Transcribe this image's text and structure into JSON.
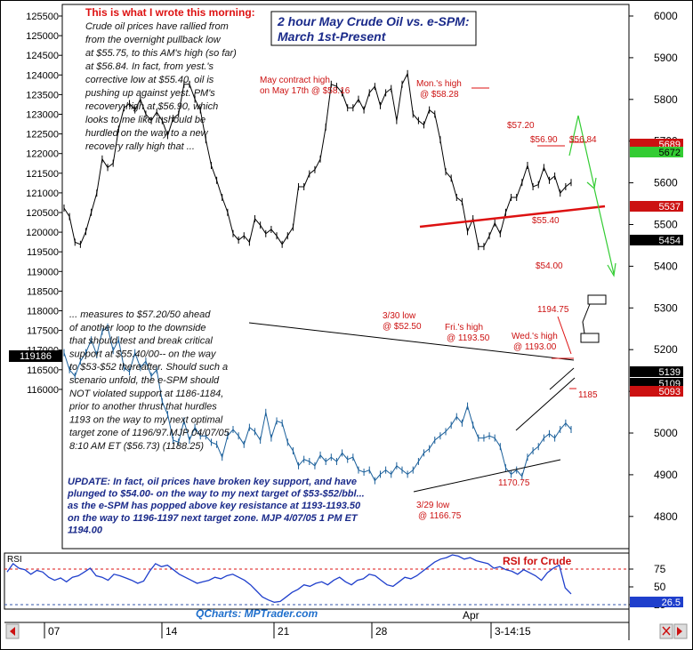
{
  "chart_data": [
    {
      "type": "line",
      "title": "2 hour May Crude Oil vs. e-SPM:",
      "subtitle": "March 1st-Present",
      "left_axis": {
        "ticks": [
          125500,
          125000,
          124500,
          124000,
          123500,
          123000,
          122500,
          122000,
          121500,
          121000,
          120500,
          120000,
          119500,
          119000,
          118500,
          118000,
          117500,
          117000,
          116500,
          116000
        ],
        "last_value_label": "119186"
      },
      "right_axis": {
        "ticks": [
          6000,
          5900,
          5800,
          5700,
          5600,
          5500,
          5400,
          5300,
          5200,
          5100,
          5000,
          4900,
          4800
        ],
        "badges": [
          {
            "text": "5689",
            "bg": "#cc1111",
            "fg": "#ffffff"
          },
          {
            "text": "5672",
            "bg": "#33cc33",
            "fg": "#000000"
          },
          {
            "text": "5537",
            "bg": "#cc1111",
            "fg": "#ffffff"
          },
          {
            "text": "5454",
            "bg": "#000000",
            "fg": "#ffffff"
          },
          {
            "text": "5139",
            "bg": "#000000",
            "fg": "#ffffff"
          },
          {
            "text": "5109",
            "bg": "#000000",
            "fg": "#ffffff"
          },
          {
            "text": "5093",
            "bg": "#cc1111",
            "fg": "#ffffff"
          }
        ]
      },
      "x_ticks": [
        "07",
        "14",
        "21",
        "28",
        "3-14:15"
      ],
      "x_month_label": "Apr",
      "series": [
        {
          "name": "Crude",
          "color": "#000000"
        },
        {
          "name": "e-SPM",
          "color": "#1a5f9a"
        }
      ],
      "crude_path": [
        [
          0,
          40
        ],
        [
          4,
          36
        ],
        [
          8,
          24
        ],
        [
          12,
          23
        ],
        [
          16,
          29
        ],
        [
          20,
          38
        ],
        [
          24,
          47
        ],
        [
          28,
          63
        ],
        [
          32,
          59
        ],
        [
          36,
          61
        ],
        [
          40,
          77
        ],
        [
          44,
          87
        ],
        [
          48,
          89
        ],
        [
          52,
          86
        ],
        [
          55,
          91
        ],
        [
          60,
          84
        ],
        [
          64,
          81
        ],
        [
          68,
          85
        ],
        [
          72,
          81
        ],
        [
          76,
          74
        ],
        [
          80,
          82
        ],
        [
          84,
          84
        ],
        [
          88,
          98
        ],
        [
          92,
          98
        ],
        [
          96,
          91
        ],
        [
          100,
          86
        ],
        [
          104,
          72
        ],
        [
          108,
          60
        ],
        [
          112,
          53
        ],
        [
          116,
          45
        ],
        [
          120,
          38
        ],
        [
          124,
          28
        ],
        [
          128,
          25
        ],
        [
          132,
          27
        ],
        [
          136,
          24
        ],
        [
          140,
          35
        ],
        [
          144,
          32
        ],
        [
          148,
          28
        ],
        [
          152,
          30
        ],
        [
          156,
          27
        ],
        [
          160,
          23
        ],
        [
          164,
          27
        ],
        [
          168,
          31
        ],
        [
          172,
          50
        ],
        [
          176,
          50
        ],
        [
          180,
          56
        ],
        [
          184,
          58
        ],
        [
          188,
          63
        ],
        [
          192,
          78
        ],
        [
          196,
          98
        ],
        [
          200,
          97
        ],
        [
          204,
          94
        ],
        [
          208,
          87
        ],
        [
          212,
          87
        ],
        [
          216,
          91
        ],
        [
          220,
          86
        ],
        [
          224,
          94
        ],
        [
          228,
          97
        ],
        [
          232,
          88
        ],
        [
          236,
          94
        ],
        [
          240,
          96
        ],
        [
          244,
          81
        ],
        [
          248,
          98
        ],
        [
          252,
          103
        ],
        [
          256,
          84
        ],
        [
          260,
          81
        ],
        [
          264,
          79
        ],
        [
          268,
          86
        ],
        [
          272,
          84
        ],
        [
          276,
          72
        ],
        [
          280,
          57
        ],
        [
          284,
          54
        ],
        [
          288,
          45
        ],
        [
          292,
          43
        ],
        [
          296,
          29
        ],
        [
          300,
          35
        ],
        [
          304,
          22
        ],
        [
          308,
          22
        ],
        [
          312,
          27
        ],
        [
          316,
          33
        ],
        [
          320,
          28
        ],
        [
          324,
          38
        ],
        [
          328,
          45
        ],
        [
          332,
          45
        ],
        [
          336,
          52
        ],
        [
          340,
          60
        ],
        [
          344,
          50
        ],
        [
          348,
          51
        ],
        [
          352,
          59
        ],
        [
          356,
          53
        ],
        [
          360,
          55
        ],
        [
          364,
          47
        ],
        [
          368,
          50
        ],
        [
          372,
          52
        ]
      ],
      "spm_path": [
        [
          0,
          66
        ],
        [
          4,
          58
        ],
        [
          8,
          55
        ],
        [
          12,
          62
        ],
        [
          16,
          66
        ],
        [
          20,
          72
        ],
        [
          24,
          65
        ],
        [
          28,
          76
        ],
        [
          32,
          78
        ],
        [
          36,
          67
        ],
        [
          40,
          72
        ],
        [
          44,
          59
        ],
        [
          48,
          57
        ],
        [
          52,
          66
        ],
        [
          56,
          59
        ],
        [
          60,
          62
        ],
        [
          64,
          55
        ],
        [
          68,
          58
        ],
        [
          72,
          43
        ],
        [
          76,
          37
        ],
        [
          80,
          25
        ],
        [
          84,
          24
        ],
        [
          88,
          34
        ],
        [
          92,
          25
        ],
        [
          96,
          31
        ],
        [
          100,
          27
        ],
        [
          104,
          27
        ],
        [
          108,
          24
        ],
        [
          112,
          23
        ],
        [
          116,
          17
        ],
        [
          120,
          27
        ],
        [
          124,
          30
        ],
        [
          128,
          27
        ],
        [
          132,
          23
        ],
        [
          136,
          31
        ],
        [
          140,
          29
        ],
        [
          144,
          25
        ],
        [
          148,
          38
        ],
        [
          152,
          26
        ],
        [
          156,
          34
        ],
        [
          160,
          33
        ],
        [
          164,
          24
        ],
        [
          168,
          20
        ],
        [
          172,
          13
        ],
        [
          176,
          16
        ],
        [
          180,
          15
        ],
        [
          184,
          13
        ],
        [
          188,
          18
        ],
        [
          192,
          15
        ],
        [
          196,
          17
        ],
        [
          200,
          15
        ],
        [
          204,
          19
        ],
        [
          208,
          16
        ],
        [
          212,
          17
        ],
        [
          216,
          11
        ],
        [
          220,
          10
        ],
        [
          224,
          11
        ],
        [
          228,
          6
        ],
        [
          232,
          9
        ],
        [
          236,
          11
        ],
        [
          240,
          9
        ],
        [
          244,
          13
        ],
        [
          248,
          11
        ],
        [
          252,
          9
        ],
        [
          256,
          11
        ],
        [
          260,
          15
        ],
        [
          264,
          19
        ],
        [
          268,
          21
        ],
        [
          272,
          25
        ],
        [
          276,
          27
        ],
        [
          280,
          29
        ],
        [
          284,
          32
        ],
        [
          288,
          36
        ],
        [
          292,
          33
        ],
        [
          296,
          41
        ],
        [
          300,
          32
        ],
        [
          304,
          26
        ],
        [
          308,
          26
        ],
        [
          312,
          27
        ],
        [
          316,
          26
        ],
        [
          320,
          22
        ],
        [
          324,
          12
        ],
        [
          328,
          9
        ],
        [
          332,
          11
        ],
        [
          336,
          8
        ],
        [
          340,
          17
        ],
        [
          344,
          20
        ],
        [
          348,
          22
        ],
        [
          352,
          26
        ],
        [
          356,
          28
        ],
        [
          360,
          26
        ],
        [
          364,
          30
        ],
        [
          368,
          33
        ],
        [
          372,
          30
        ]
      ],
      "annotations": {
        "note_heading": "This is what I wrote this morning:",
        "note_body": [
          "Crude oil prices have rallied from",
          "from the overnight pullback low",
          "at $55.75, to this AM's high (so far)",
          "at $56.84. In fact, from yest.'s",
          "corrective low at $55.40, oil is",
          "pushing up against yest. PM's",
          "recovery high at $56.90, which",
          "looks to me like it should be",
          "hurdled on the way to a new",
          "recovery rally high that ..."
        ],
        "note_body2": [
          "... measures to $57.20/50 ahead",
          "of another loop to the downside",
          "that should test and break critical",
          "support at $55.40/00-- on the way",
          "to $53-$52 thereafter. Should such a",
          "scenario unfold, the e-SPM should",
          "NOT violated support at 1186-1184,",
          "prior to another thrust that hurdles",
          "1193 on the way to my next optimal",
          "target zone of 1196/97.MJP 04/07/05",
          "8:10 AM ET ($56.73) (1188.25)"
        ],
        "update": [
          "UPDATE: In fact, oil prices have broken key support, and have",
          "plunged to $54.00- on the way to my next target of $53-$52/bbl...",
          "as the e-SPM has popped above key resistance at 1193-1193.50",
          "on the way to 1196-1197 next target zone. MJP  4/07/05  1 PM ET",
          "1194.00"
        ],
        "may_high": [
          "May contract high",
          "on May 17th @ $58.16"
        ],
        "mon_high": "Mon.'s high",
        "mon_high_val": "@ $58.28",
        "p5720": "$57.20",
        "p5690": "$56.90",
        "p5684": "$56.84",
        "p5540": "$55.40",
        "p5400": "$54.00",
        "low330": [
          "3/30 low",
          "@  $52.50"
        ],
        "fri_high": [
          "Fri.'s high",
          "@ 1193.50"
        ],
        "wed_high": [
          "Wed.'s high",
          "@ 1193.00"
        ],
        "v119475": "1194.75",
        "v1185": "1185",
        "v117075": "1170.75",
        "low329": [
          "3/29 low",
          "@ 1166.75"
        ]
      }
    },
    {
      "type": "line",
      "title": "RSI",
      "legend": "RSI for Crude",
      "ticks": [
        75,
        50,
        25
      ],
      "current_value": "26.5",
      "rsi_values": [
        55,
        66,
        60,
        58,
        52,
        57,
        55,
        48,
        44,
        47,
        42,
        48,
        50,
        55,
        60,
        50,
        48,
        44,
        52,
        50,
        47,
        44,
        40,
        43,
        56,
        66,
        62,
        64,
        58,
        52,
        48,
        44,
        40,
        42,
        44,
        48,
        46,
        50,
        52,
        48,
        44,
        38,
        30,
        22,
        18,
        15,
        16,
        22,
        28,
        32,
        38,
        36,
        40,
        42,
        38,
        44,
        48,
        42,
        38,
        44,
        46,
        52,
        50,
        44,
        38,
        36,
        42,
        48,
        46,
        50,
        56,
        62,
        68,
        72,
        74,
        78,
        76,
        72,
        74,
        70,
        68,
        66,
        60,
        62,
        58,
        56,
        52,
        58,
        54,
        50,
        44,
        54,
        60,
        64,
        34,
        26
      ]
    }
  ],
  "watermark": "QCharts: MPTrader.com"
}
